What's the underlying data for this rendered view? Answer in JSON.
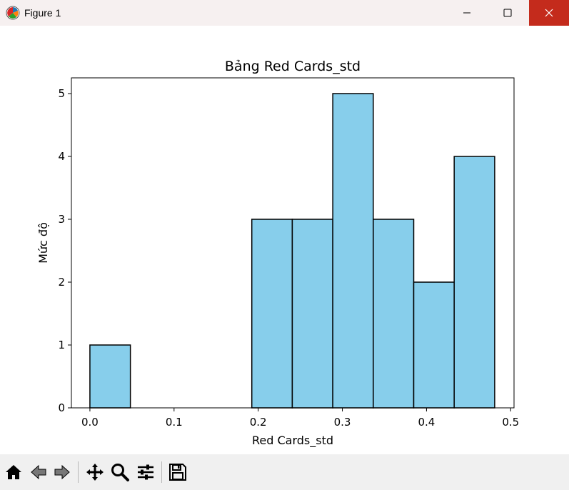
{
  "window": {
    "title": "Figure 1"
  },
  "toolbar": {
    "buttons": [
      "home-icon",
      "back-arrow-icon",
      "forward-arrow-icon",
      "pan-icon",
      "zoom-icon",
      "configure-subplots-icon",
      "save-icon"
    ]
  },
  "chart_data": {
    "type": "bar",
    "title": "Bảng Red Cards_std",
    "xlabel": "Red Cards_std",
    "ylabel": "Mức độ",
    "bin_edges": [
      0.0,
      0.0481,
      0.0962,
      0.1443,
      0.1924,
      0.2405,
      0.2886,
      0.3367,
      0.3848,
      0.4329,
      0.481
    ],
    "values": [
      1,
      0,
      0,
      0,
      3,
      3,
      5,
      3,
      2,
      4
    ],
    "xlim": [
      -0.022,
      0.504
    ],
    "ylim": [
      0,
      5.25
    ],
    "xticks": [
      "0.0",
      "0.1",
      "0.2",
      "0.3",
      "0.4",
      "0.5"
    ],
    "yticks": [
      "0",
      "1",
      "2",
      "3",
      "4",
      "5"
    ],
    "bar_color": "#87ceeb",
    "edge_color": "#000000",
    "grid": false
  }
}
